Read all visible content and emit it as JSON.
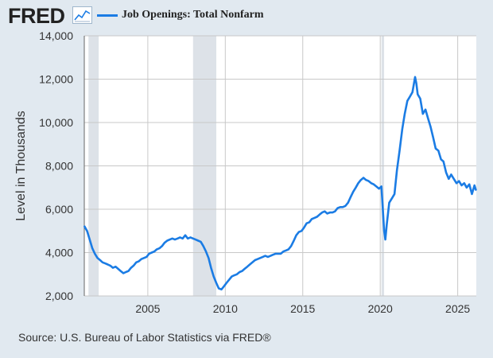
{
  "header": {
    "logo_text": "FRED",
    "logo_icon": "trend-line-icon"
  },
  "colors": {
    "background": "#e1e9f0",
    "plot_background": "#ffffff",
    "series": "#1b7ce4",
    "recession": "#dde2e8",
    "grid": "#c8c8c8"
  },
  "footer": {
    "source": "Source: U.S. Bureau of Labor Statistics via FRED®"
  },
  "chart_data": {
    "type": "line",
    "title": "",
    "xlabel": "",
    "ylabel": "Level in Thousands",
    "xlim": [
      2000.9,
      2026.2
    ],
    "ylim": [
      2000,
      14000
    ],
    "y_ticks": [
      2000,
      4000,
      6000,
      8000,
      10000,
      12000,
      14000
    ],
    "y_tick_labels": [
      "2,000",
      "4,000",
      "6,000",
      "8,000",
      "10,000",
      "12,000",
      "14,000"
    ],
    "x_ticks": [
      2005,
      2010,
      2015,
      2020,
      2025
    ],
    "x_tick_labels": [
      "2005",
      "2010",
      "2015",
      "2020",
      "2025"
    ],
    "grid": true,
    "legend_position": "top-left",
    "recessions": [
      [
        2001.17,
        2001.83
      ],
      [
        2007.92,
        2009.42
      ],
      [
        2020.08,
        2020.25
      ]
    ],
    "series": [
      {
        "name": "Job Openings: Total Nonfarm",
        "color": "#1b7ce4",
        "points": [
          [
            2000.92,
            5200
          ],
          [
            2001.08,
            5000
          ],
          [
            2001.25,
            4600
          ],
          [
            2001.42,
            4200
          ],
          [
            2001.58,
            3950
          ],
          [
            2001.75,
            3750
          ],
          [
            2001.92,
            3650
          ],
          [
            2002.08,
            3550
          ],
          [
            2002.25,
            3500
          ],
          [
            2002.42,
            3450
          ],
          [
            2002.58,
            3400
          ],
          [
            2002.75,
            3300
          ],
          [
            2002.92,
            3350
          ],
          [
            2003.08,
            3250
          ],
          [
            2003.25,
            3150
          ],
          [
            2003.42,
            3050
          ],
          [
            2003.58,
            3100
          ],
          [
            2003.75,
            3150
          ],
          [
            2003.92,
            3300
          ],
          [
            2004.08,
            3400
          ],
          [
            2004.25,
            3550
          ],
          [
            2004.42,
            3600
          ],
          [
            2004.58,
            3700
          ],
          [
            2004.75,
            3750
          ],
          [
            2004.92,
            3800
          ],
          [
            2005.08,
            3950
          ],
          [
            2005.25,
            4000
          ],
          [
            2005.42,
            4050
          ],
          [
            2005.58,
            4150
          ],
          [
            2005.75,
            4200
          ],
          [
            2005.92,
            4300
          ],
          [
            2006.08,
            4450
          ],
          [
            2006.25,
            4550
          ],
          [
            2006.42,
            4600
          ],
          [
            2006.58,
            4650
          ],
          [
            2006.75,
            4600
          ],
          [
            2006.92,
            4650
          ],
          [
            2007.08,
            4700
          ],
          [
            2007.25,
            4650
          ],
          [
            2007.42,
            4800
          ],
          [
            2007.58,
            4650
          ],
          [
            2007.75,
            4700
          ],
          [
            2007.92,
            4650
          ],
          [
            2008.08,
            4600
          ],
          [
            2008.25,
            4550
          ],
          [
            2008.42,
            4500
          ],
          [
            2008.58,
            4300
          ],
          [
            2008.75,
            4050
          ],
          [
            2008.92,
            3750
          ],
          [
            2009.08,
            3300
          ],
          [
            2009.25,
            2900
          ],
          [
            2009.42,
            2600
          ],
          [
            2009.58,
            2350
          ],
          [
            2009.75,
            2300
          ],
          [
            2009.92,
            2450
          ],
          [
            2010.08,
            2600
          ],
          [
            2010.25,
            2750
          ],
          [
            2010.42,
            2900
          ],
          [
            2010.58,
            2950
          ],
          [
            2010.75,
            3000
          ],
          [
            2010.92,
            3100
          ],
          [
            2011.08,
            3150
          ],
          [
            2011.25,
            3250
          ],
          [
            2011.42,
            3350
          ],
          [
            2011.58,
            3450
          ],
          [
            2011.75,
            3550
          ],
          [
            2011.92,
            3650
          ],
          [
            2012.08,
            3700
          ],
          [
            2012.25,
            3750
          ],
          [
            2012.42,
            3800
          ],
          [
            2012.58,
            3850
          ],
          [
            2012.75,
            3800
          ],
          [
            2012.92,
            3850
          ],
          [
            2013.08,
            3900
          ],
          [
            2013.25,
            3950
          ],
          [
            2013.42,
            3950
          ],
          [
            2013.58,
            3950
          ],
          [
            2013.75,
            4050
          ],
          [
            2013.92,
            4100
          ],
          [
            2014.08,
            4150
          ],
          [
            2014.25,
            4300
          ],
          [
            2014.42,
            4550
          ],
          [
            2014.58,
            4800
          ],
          [
            2014.75,
            4950
          ],
          [
            2014.92,
            5000
          ],
          [
            2015.08,
            5150
          ],
          [
            2015.25,
            5350
          ],
          [
            2015.42,
            5400
          ],
          [
            2015.58,
            5550
          ],
          [
            2015.75,
            5600
          ],
          [
            2015.92,
            5650
          ],
          [
            2016.08,
            5750
          ],
          [
            2016.25,
            5850
          ],
          [
            2016.42,
            5900
          ],
          [
            2016.58,
            5800
          ],
          [
            2016.75,
            5850
          ],
          [
            2016.92,
            5850
          ],
          [
            2017.08,
            5900
          ],
          [
            2017.25,
            6050
          ],
          [
            2017.42,
            6100
          ],
          [
            2017.58,
            6100
          ],
          [
            2017.75,
            6150
          ],
          [
            2017.92,
            6300
          ],
          [
            2018.08,
            6550
          ],
          [
            2018.25,
            6800
          ],
          [
            2018.42,
            7000
          ],
          [
            2018.58,
            7200
          ],
          [
            2018.75,
            7350
          ],
          [
            2018.92,
            7450
          ],
          [
            2019.08,
            7350
          ],
          [
            2019.25,
            7300
          ],
          [
            2019.42,
            7200
          ],
          [
            2019.58,
            7150
          ],
          [
            2019.75,
            7050
          ],
          [
            2019.92,
            6950
          ],
          [
            2020.08,
            7050
          ],
          [
            2020.25,
            5000
          ],
          [
            2020.33,
            4600
          ],
          [
            2020.42,
            5300
          ],
          [
            2020.58,
            6300
          ],
          [
            2020.75,
            6500
          ],
          [
            2020.92,
            6700
          ],
          [
            2021.08,
            7800
          ],
          [
            2021.25,
            8700
          ],
          [
            2021.42,
            9700
          ],
          [
            2021.58,
            10400
          ],
          [
            2021.75,
            11000
          ],
          [
            2021.92,
            11200
          ],
          [
            2022.08,
            11400
          ],
          [
            2022.25,
            12100
          ],
          [
            2022.33,
            11800
          ],
          [
            2022.42,
            11300
          ],
          [
            2022.58,
            11100
          ],
          [
            2022.75,
            10400
          ],
          [
            2022.92,
            10600
          ],
          [
            2023.08,
            10200
          ],
          [
            2023.25,
            9800
          ],
          [
            2023.42,
            9300
          ],
          [
            2023.58,
            8800
          ],
          [
            2023.75,
            8700
          ],
          [
            2023.92,
            8300
          ],
          [
            2024.08,
            8200
          ],
          [
            2024.25,
            7700
          ],
          [
            2024.42,
            7400
          ],
          [
            2024.58,
            7600
          ],
          [
            2024.75,
            7400
          ],
          [
            2024.92,
            7200
          ],
          [
            2025.08,
            7300
          ],
          [
            2025.25,
            7100
          ],
          [
            2025.42,
            7200
          ],
          [
            2025.58,
            7000
          ],
          [
            2025.75,
            7150
          ],
          [
            2025.92,
            6700
          ],
          [
            2026.08,
            7100
          ],
          [
            2026.17,
            6900
          ]
        ]
      }
    ]
  }
}
